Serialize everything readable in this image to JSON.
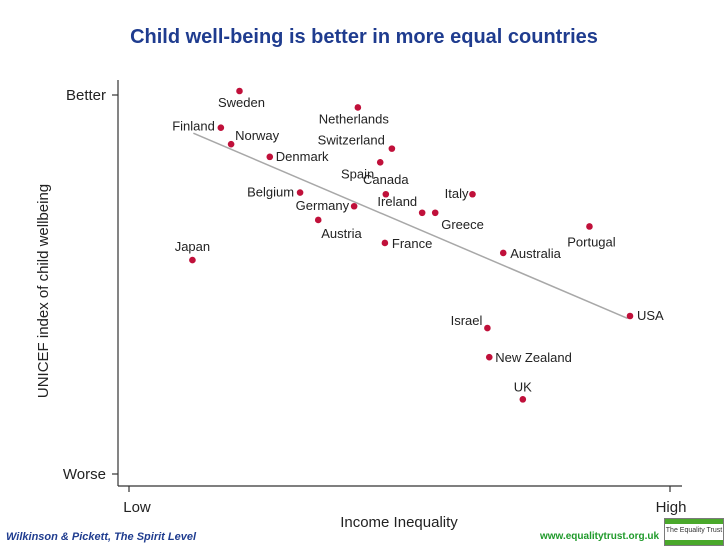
{
  "chart_data": {
    "type": "scatter",
    "title": "Child well-being is better in more equal countries",
    "xlabel": "Income Inequality",
    "ylabel": "UNICEF index of child wellbeing",
    "xlim": [
      0,
      100
    ],
    "ylim": [
      0,
      100
    ],
    "x_tick_labels": [
      "Low",
      "High"
    ],
    "y_tick_labels": [
      "Worse",
      "Better"
    ],
    "grid": false,
    "trend_line": {
      "from": [
        6.3,
        87.7
      ],
      "to": [
        99.5,
        33.7
      ]
    },
    "points": [
      {
        "label": "Sweden",
        "x": 16.2,
        "y": 100
      },
      {
        "label": "Netherlands",
        "x": 41.6,
        "y": 95.2
      },
      {
        "label": "Finland",
        "x": 12.2,
        "y": 89.3
      },
      {
        "label": "Norway",
        "x": 14.4,
        "y": 84.5
      },
      {
        "label": "Switzerland",
        "x": 48.9,
        "y": 83.2
      },
      {
        "label": "Denmark",
        "x": 22.7,
        "y": 80.8
      },
      {
        "label": "Spain",
        "x": 46.4,
        "y": 79.2
      },
      {
        "label": "Belgium",
        "x": 29.2,
        "y": 70.4
      },
      {
        "label": "Canada",
        "x": 47.6,
        "y": 69.9
      },
      {
        "label": "Italy",
        "x": 66.2,
        "y": 69.9
      },
      {
        "label": "Germany",
        "x": 40.8,
        "y": 66.4
      },
      {
        "label": "Ireland",
        "x": 55.4,
        "y": 64.5
      },
      {
        "label": "Greece",
        "x": 58.2,
        "y": 64.5
      },
      {
        "label": "Austria",
        "x": 33.1,
        "y": 62.4
      },
      {
        "label": "Portugal",
        "x": 91.3,
        "y": 60.5
      },
      {
        "label": "France",
        "x": 47.4,
        "y": 55.7
      },
      {
        "label": "Australia",
        "x": 72.8,
        "y": 52.8
      },
      {
        "label": "Japan",
        "x": 6.1,
        "y": 50.7
      },
      {
        "label": "USA",
        "x": 100,
        "y": 34.4
      },
      {
        "label": "Israel",
        "x": 69.4,
        "y": 30.9
      },
      {
        "label": "New Zealand",
        "x": 69.8,
        "y": 22.4
      },
      {
        "label": "UK",
        "x": 77.0,
        "y": 10.1
      }
    ]
  },
  "footer": {
    "source": "Wilkinson & Pickett, The Spirit Level",
    "url": "www.equalitytrust.org.uk",
    "logo_text": "The Equality Trust"
  },
  "colors": {
    "title": "#1f3c8f",
    "point": "#c0103a",
    "trend": "#a8a8a8",
    "url": "#1f9a2a",
    "logo_bar": "#4aa82b"
  }
}
